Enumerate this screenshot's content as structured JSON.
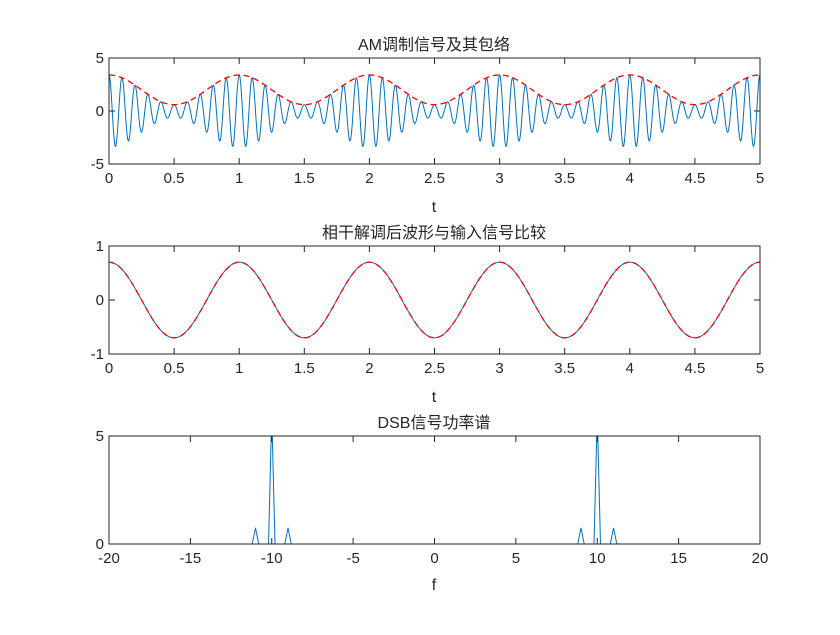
{
  "colors": {
    "signal": "#0072BD",
    "reference": "#FF0000",
    "axis": "#262626"
  },
  "chart_data": [
    {
      "type": "line",
      "title": "AM调制信号及其包络",
      "xlabel": "t",
      "ylabel": "",
      "xlim": [
        0,
        5
      ],
      "ylim": [
        -5,
        5
      ],
      "xticks": [
        "0",
        "0.5",
        "1",
        "1.5",
        "2",
        "2.5",
        "3",
        "3.5",
        "4",
        "4.5",
        "5"
      ],
      "yticks": [
        "-5",
        "0",
        "5"
      ],
      "grid": false,
      "series": [
        {
          "style": "solid",
          "color": "#0072BD",
          "expression": "(2 + 1.4*cos(2*pi*t)) * cos(2*pi*10*t)"
        },
        {
          "style": "dashed",
          "color": "#FF0000",
          "expression": "2 + 1.4*cos(2*pi*t)"
        }
      ]
    },
    {
      "type": "line",
      "title": "相干解调后波形与输入信号比较",
      "xlabel": "t",
      "ylabel": "",
      "xlim": [
        0,
        5
      ],
      "ylim": [
        -1,
        1
      ],
      "xticks": [
        "0",
        "0.5",
        "1",
        "1.5",
        "2",
        "2.5",
        "3",
        "3.5",
        "4",
        "4.5",
        "5"
      ],
      "yticks": [
        "-1",
        "0",
        "1"
      ],
      "grid": false,
      "series": [
        {
          "style": "solid",
          "color": "#0072BD",
          "expression": "0.7*cos(2*pi*t)"
        },
        {
          "style": "dashed",
          "color": "#FF0000",
          "expression": "0.7*cos(2*pi*t)"
        }
      ]
    },
    {
      "type": "line",
      "title": "DSB信号功率谱",
      "xlabel": "f",
      "ylabel": "",
      "xlim": [
        -20,
        20
      ],
      "ylim": [
        0,
        5
      ],
      "xticks": [
        "-20",
        "-15",
        "-10",
        "-5",
        "0",
        "5",
        "10",
        "15",
        "20"
      ],
      "yticks": [
        "0",
        "5"
      ],
      "grid": false,
      "series": [
        {
          "style": "solid",
          "color": "#0072BD",
          "x": [
            -20,
            -11.2,
            -11,
            -10.8,
            -10.2,
            -10,
            -9.8,
            -9.2,
            -9,
            -8.8,
            8.8,
            9,
            9.2,
            9.8,
            10,
            10.2,
            10.8,
            11,
            11.2,
            20
          ],
          "y": [
            0,
            0,
            0.75,
            0,
            0,
            6.0,
            0,
            0,
            0.75,
            0,
            0,
            0.75,
            0,
            0,
            6.0,
            0,
            0,
            0.75,
            0,
            0
          ]
        }
      ]
    }
  ]
}
